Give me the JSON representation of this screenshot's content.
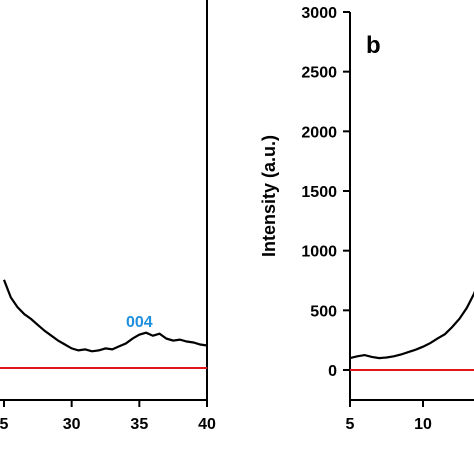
{
  "colors": {
    "axis": "#000000",
    "trace": "#000000",
    "baseline": "#e3141b",
    "annotation": "#1f8fe0"
  },
  "chart_data": [
    {
      "panel": "a",
      "type": "line",
      "xlabel": "",
      "ylabel": "",
      "xlim": [
        25,
        40
      ],
      "x_ticks": [
        "5",
        "30",
        "35",
        "40"
      ],
      "annotations": [
        {
          "text": "004",
          "x": 35.2,
          "y": 0.42
        }
      ],
      "series": [
        {
          "values_x": [
            25.0,
            25.5,
            26.0,
            26.5,
            27.0,
            27.5,
            28.0,
            28.5,
            29.0,
            29.5,
            30.0,
            30.5,
            31.0,
            31.5,
            32.0,
            32.5,
            33.0,
            33.5,
            34.0,
            34.5,
            35.0,
            35.5,
            36.0,
            36.5,
            37.0,
            37.5,
            38.0,
            38.5,
            39.0,
            39.5,
            40.0
          ],
          "values_y": [
            0.9,
            0.72,
            0.62,
            0.55,
            0.5,
            0.44,
            0.38,
            0.33,
            0.28,
            0.24,
            0.2,
            0.18,
            0.19,
            0.17,
            0.18,
            0.2,
            0.19,
            0.22,
            0.25,
            0.3,
            0.34,
            0.36,
            0.33,
            0.35,
            0.3,
            0.28,
            0.29,
            0.27,
            0.26,
            0.24,
            0.23
          ]
        }
      ],
      "baseline": 0
    },
    {
      "panel": "b",
      "type": "line",
      "title": "b",
      "xlabel": "",
      "ylabel": "Intensity (a.u.)",
      "ylim": [
        0,
        3000
      ],
      "y_ticks": [
        "0",
        "500",
        "1000",
        "1500",
        "2000",
        "2500",
        "3000"
      ],
      "x_ticks": [
        "5",
        "10"
      ],
      "series": [
        {
          "values_x": [
            5,
            5.5,
            6,
            6.5,
            7,
            7.5,
            8,
            8.5,
            9,
            9.5,
            10,
            10.5,
            11,
            11.5,
            12,
            12.5,
            13,
            13.5,
            14,
            14.2
          ],
          "values_y": [
            100,
            115,
            125,
            110,
            100,
            105,
            115,
            130,
            150,
            170,
            195,
            225,
            265,
            300,
            360,
            430,
            520,
            640,
            790,
            900
          ]
        }
      ],
      "baseline": 0
    }
  ]
}
